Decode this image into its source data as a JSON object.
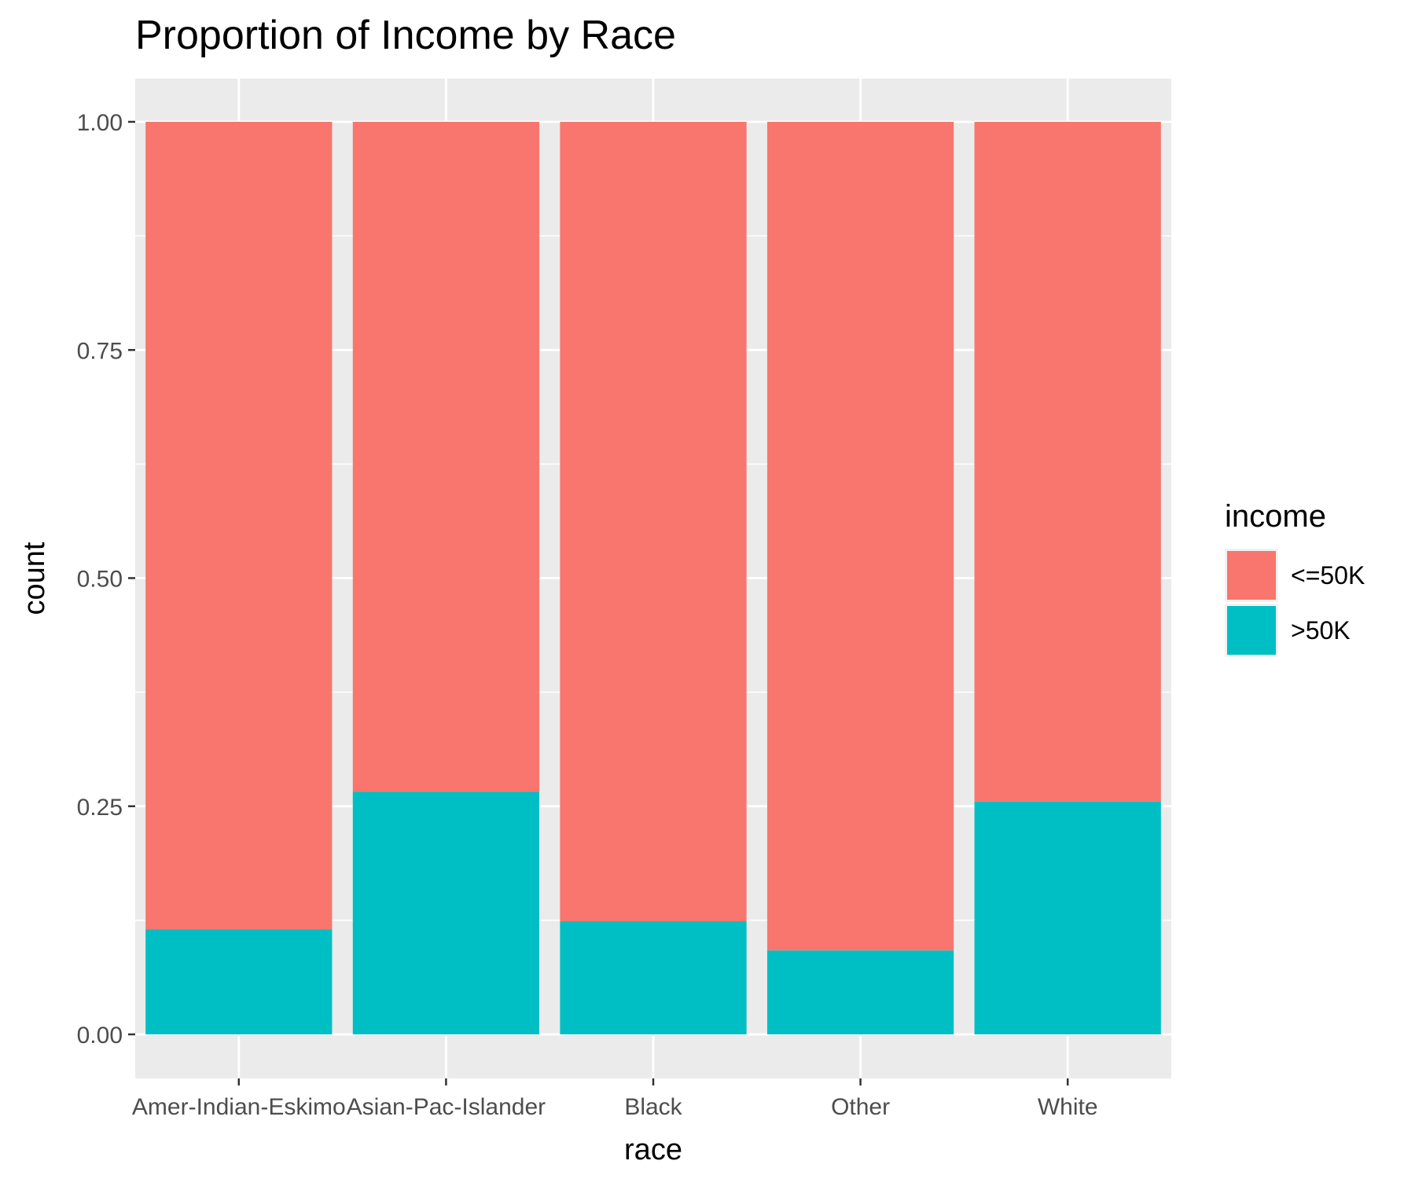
{
  "chart_data": {
    "type": "bar",
    "stacked": true,
    "title": "Proportion of Income by Race",
    "xlabel": "race",
    "ylabel": "count",
    "ylim": [
      0,
      1
    ],
    "yticks": [
      "0.00",
      "0.25",
      "0.50",
      "0.75",
      "1.00"
    ],
    "categories": [
      "Amer-Indian-Eskimo",
      "Asian-Pac-Islander",
      "Black",
      "Other",
      "White"
    ],
    "series": [
      {
        "name": "<=50K",
        "color": "#F8766D",
        "values": [
          0.885,
          0.734,
          0.876,
          0.908,
          0.745
        ]
      },
      {
        "name": ">50K",
        "color": "#00BFC4",
        "values": [
          0.115,
          0.266,
          0.124,
          0.092,
          0.255
        ]
      }
    ],
    "legend": {
      "title": "income",
      "position": "right"
    },
    "grid": true,
    "panel_background": "#EBEBEB",
    "grid_color": "#FFFFFF"
  }
}
